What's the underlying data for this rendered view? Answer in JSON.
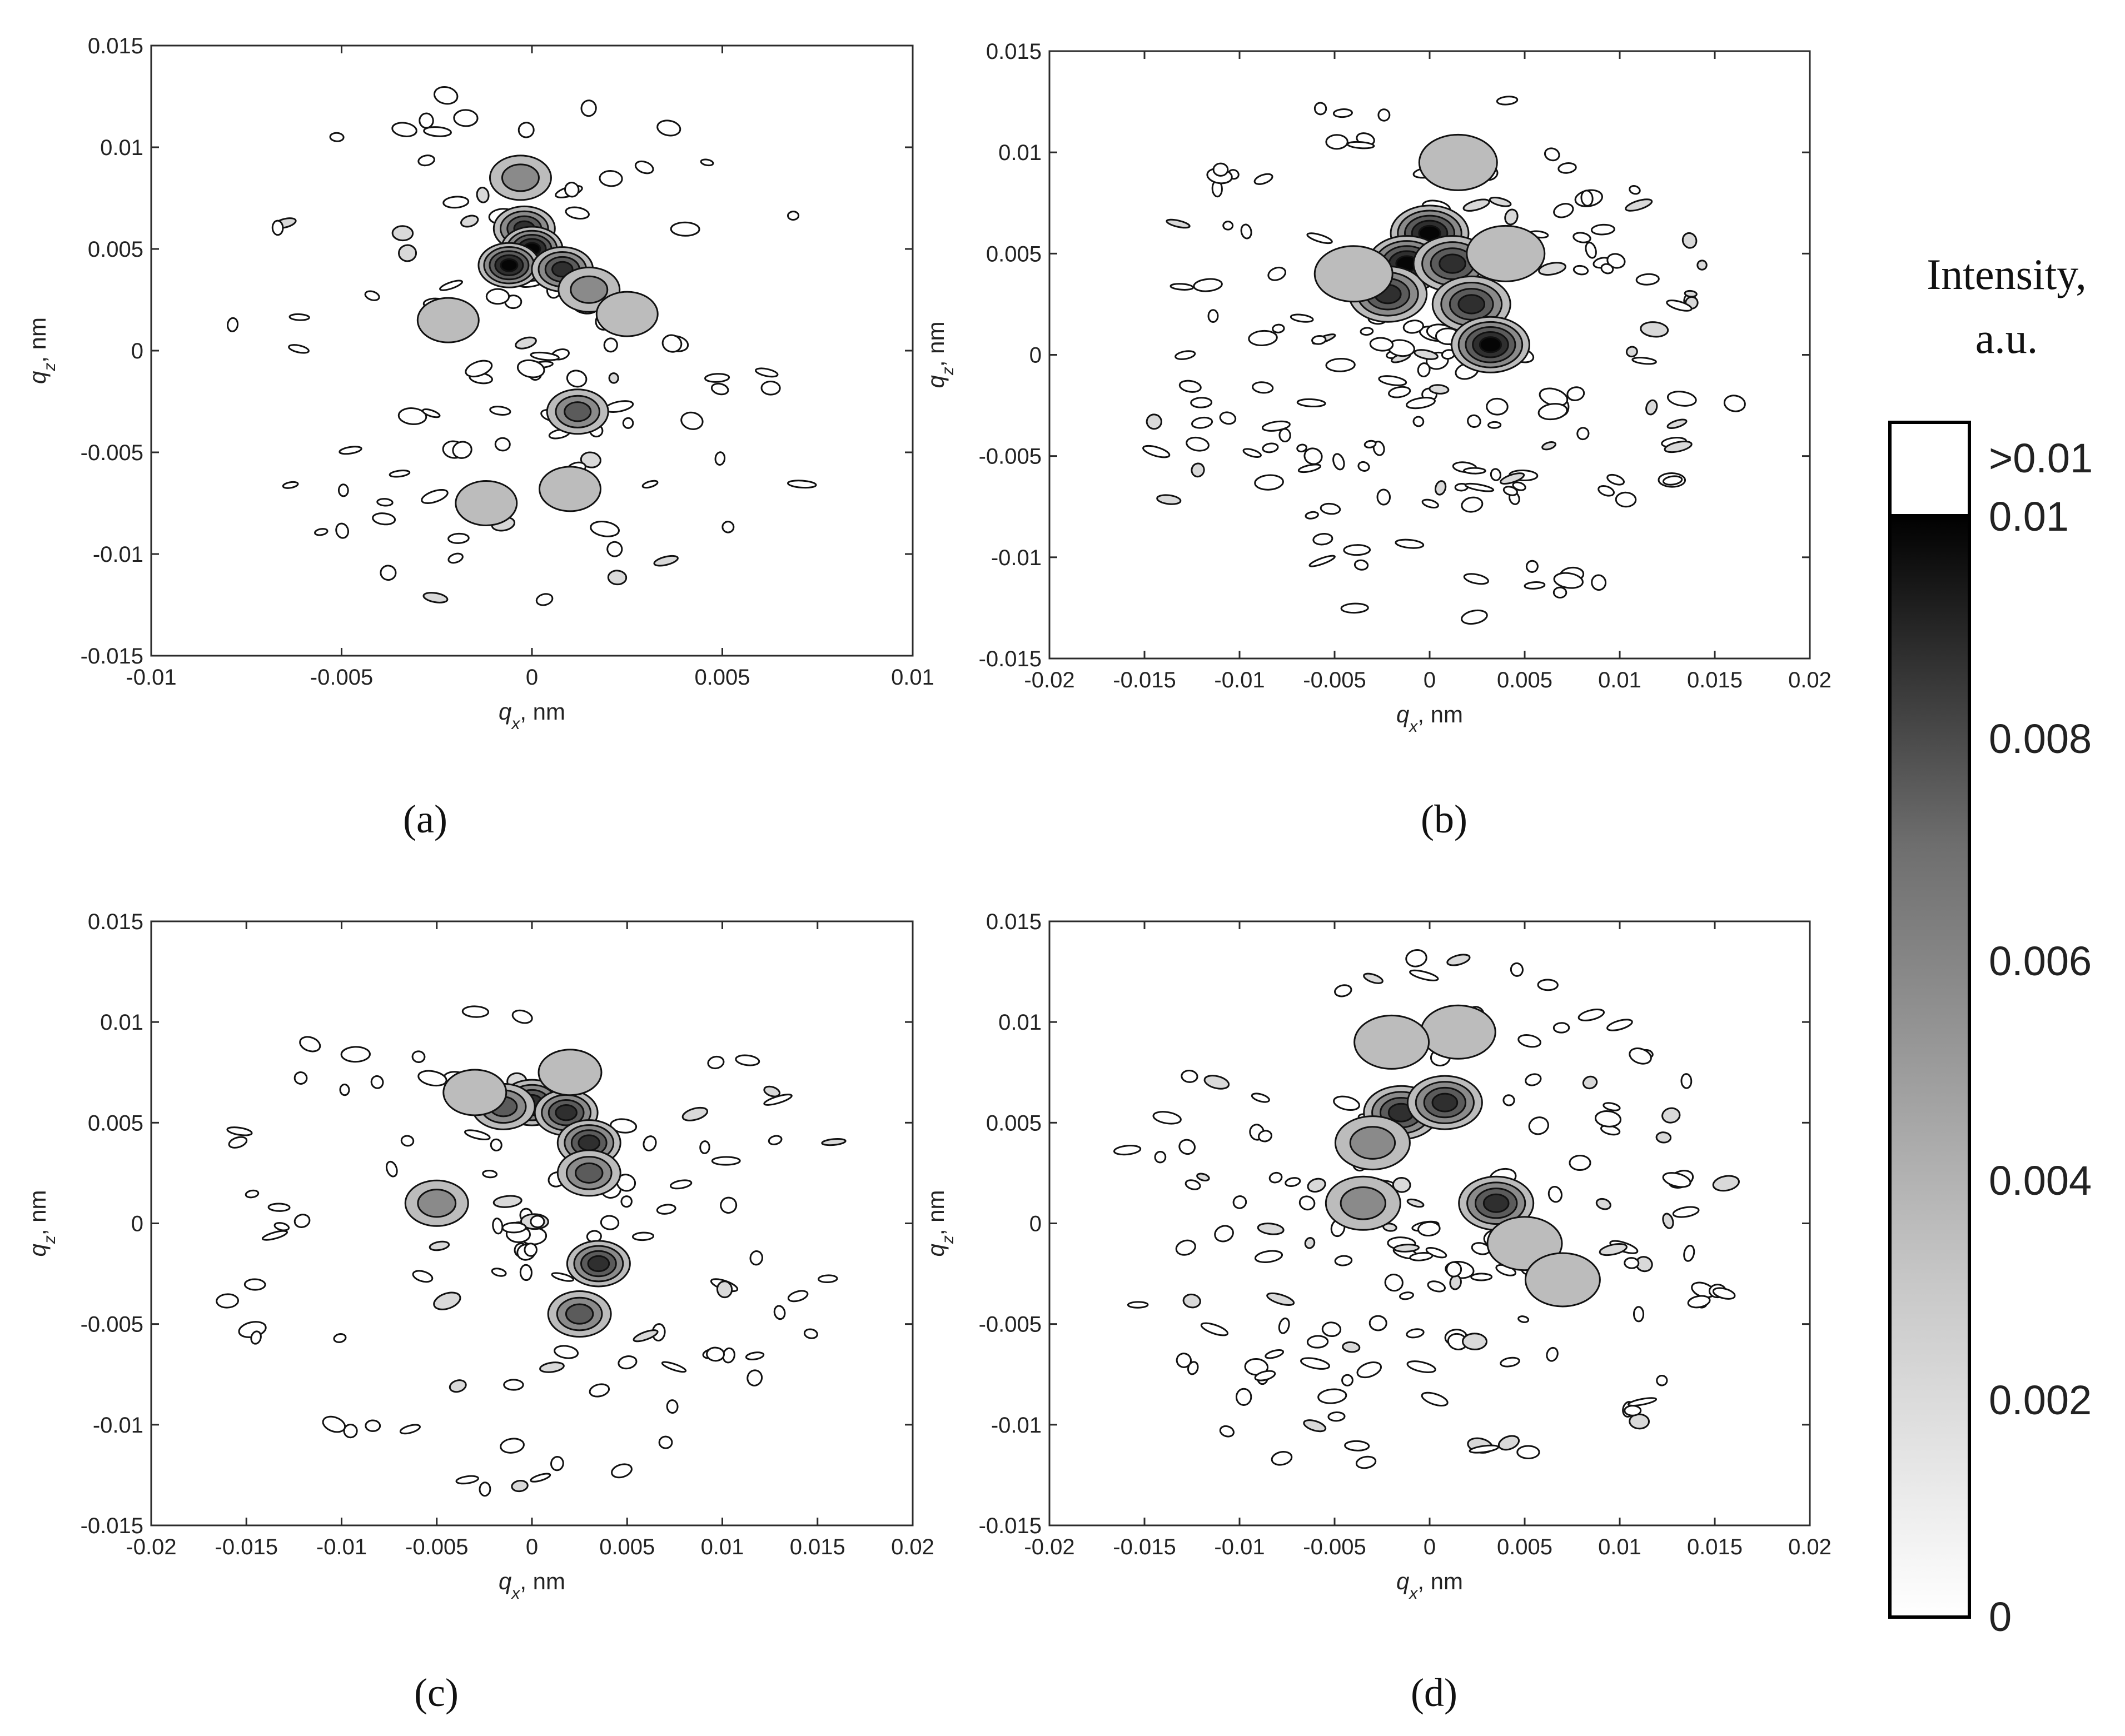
{
  "chart_data": [
    {
      "type": "contour",
      "panel": "(a)",
      "xlabel": "q, nm",
      "xlabel_var": "q",
      "xlabel_sub": "x",
      "xlabel_unit": ", nm",
      "ylabel_var": "q",
      "ylabel_sub": "z",
      "ylabel_unit": ", nm",
      "xlim": [
        -0.01,
        0.01
      ],
      "ylim": [
        -0.015,
        0.015
      ],
      "xticks": [
        "-0.01",
        "-0.005",
        "0",
        "0.005",
        "0.01"
      ],
      "yticks": [
        "0.015",
        "0.01",
        "0.005",
        "0",
        "-0.005",
        "-0.01",
        "-0.015"
      ],
      "ridge": [
        {
          "x": -0.0003,
          "z": 0.0085,
          "i": 0.003
        },
        {
          "x": -0.0002,
          "z": 0.006,
          "i": 0.008
        },
        {
          "x": 0.0,
          "z": 0.005,
          "i": 0.009
        },
        {
          "x": -0.0006,
          "z": 0.0042,
          "i": 0.009
        },
        {
          "x": 0.0008,
          "z": 0.004,
          "i": 0.007
        },
        {
          "x": 0.0015,
          "z": 0.003,
          "i": 0.004
        },
        {
          "x": 0.0025,
          "z": 0.0018,
          "i": 0.002
        },
        {
          "x": 0.0012,
          "z": -0.003,
          "i": 0.005
        },
        {
          "x": 0.001,
          "z": -0.0068,
          "i": 0.002
        },
        {
          "x": -0.0012,
          "z": -0.0075,
          "i": 0.002
        },
        {
          "x": -0.0022,
          "z": 0.0015,
          "i": 0.002
        }
      ],
      "spread": 0.5
    },
    {
      "type": "contour",
      "panel": "(b)",
      "xlim": [
        -0.02,
        0.02
      ],
      "ylim": [
        -0.015,
        0.015
      ],
      "xticks": [
        "-0.02",
        "-0.015",
        "-0.01",
        "-0.005",
        "0",
        "0.005",
        "0.01",
        "0.015",
        "0.02"
      ],
      "yticks": [
        "0.015",
        "0.01",
        "0.005",
        "0",
        "-0.005",
        "-0.01",
        "-0.015"
      ],
      "ridge": [
        {
          "x": 0.0,
          "z": 0.006,
          "i": 0.009
        },
        {
          "x": -0.0012,
          "z": 0.0045,
          "i": 0.009
        },
        {
          "x": -0.0022,
          "z": 0.003,
          "i": 0.008
        },
        {
          "x": 0.0012,
          "z": 0.0045,
          "i": 0.008
        },
        {
          "x": 0.0022,
          "z": 0.0025,
          "i": 0.008
        },
        {
          "x": 0.0032,
          "z": 0.0005,
          "i": 0.009
        },
        {
          "x": 0.0015,
          "z": 0.0095,
          "i": 0.002
        },
        {
          "x": -0.004,
          "z": 0.004,
          "i": 0.002
        },
        {
          "x": 0.004,
          "z": 0.005,
          "i": 0.002
        }
      ],
      "spread": 1.0
    },
    {
      "type": "contour",
      "panel": "(c)",
      "xlim": [
        -0.02,
        0.02
      ],
      "ylim": [
        -0.015,
        0.015
      ],
      "xticks": [
        "-0.02",
        "-0.015",
        "-0.01",
        "-0.005",
        "0",
        "0.005",
        "0.01",
        "0.015",
        "0.02"
      ],
      "yticks": [
        "0.015",
        "0.01",
        "0.005",
        "0",
        "-0.005",
        "-0.01",
        "-0.015"
      ],
      "ridge": [
        {
          "x": 0.0,
          "z": 0.006,
          "i": 0.008
        },
        {
          "x": 0.0018,
          "z": 0.0055,
          "i": 0.007
        },
        {
          "x": 0.003,
          "z": 0.004,
          "i": 0.007
        },
        {
          "x": 0.003,
          "z": 0.0025,
          "i": 0.006
        },
        {
          "x": -0.0015,
          "z": 0.0058,
          "i": 0.005
        },
        {
          "x": -0.003,
          "z": 0.0065,
          "i": 0.002
        },
        {
          "x": 0.0035,
          "z": -0.002,
          "i": 0.007
        },
        {
          "x": 0.0025,
          "z": -0.0045,
          "i": 0.006
        },
        {
          "x": -0.005,
          "z": 0.001,
          "i": 0.003
        },
        {
          "x": 0.002,
          "z": 0.0075,
          "i": 0.002
        }
      ],
      "spread": 0.55
    },
    {
      "type": "contour",
      "panel": "(d)",
      "xlim": [
        -0.02,
        0.02
      ],
      "ylim": [
        -0.015,
        0.015
      ],
      "xticks": [
        "-0.02",
        "-0.015",
        "-0.01",
        "-0.005",
        "0",
        "0.005",
        "0.01",
        "0.015",
        "0.02"
      ],
      "yticks": [
        "0.015",
        "0.01",
        "0.005",
        "0",
        "-0.005",
        "-0.01",
        "-0.015"
      ],
      "ridge": [
        {
          "x": -0.0015,
          "z": 0.0055,
          "i": 0.007
        },
        {
          "x": 0.0008,
          "z": 0.006,
          "i": 0.008
        },
        {
          "x": -0.003,
          "z": 0.004,
          "i": 0.004
        },
        {
          "x": 0.0015,
          "z": 0.0095,
          "i": 0.002
        },
        {
          "x": -0.002,
          "z": 0.009,
          "i": 0.002
        },
        {
          "x": 0.0035,
          "z": 0.001,
          "i": 0.007
        },
        {
          "x": 0.005,
          "z": -0.001,
          "i": 0.002
        },
        {
          "x": 0.007,
          "z": -0.0028,
          "i": 0.002
        },
        {
          "x": -0.0035,
          "z": 0.001,
          "i": 0.003
        }
      ],
      "spread": 0.9
    }
  ],
  "colorbar": {
    "title_line1": "Intensity,",
    "title_line2": "a.u.",
    "over_label": ">0.01",
    "ticks": [
      "0.01",
      "0.008",
      "0.006",
      "0.004",
      "0.002",
      "0"
    ],
    "range": [
      0,
      0.01
    ],
    "colormap": [
      "#ffffff",
      "#000000"
    ]
  },
  "captions": [
    "(a)",
    "(b)",
    "(c)",
    "(d)"
  ],
  "axis_labels": {
    "x_var": "q",
    "x_sub": "x",
    "x_unit": ", nm",
    "z_var": "q",
    "z_sub": "z",
    "z_unit": ", nm"
  }
}
